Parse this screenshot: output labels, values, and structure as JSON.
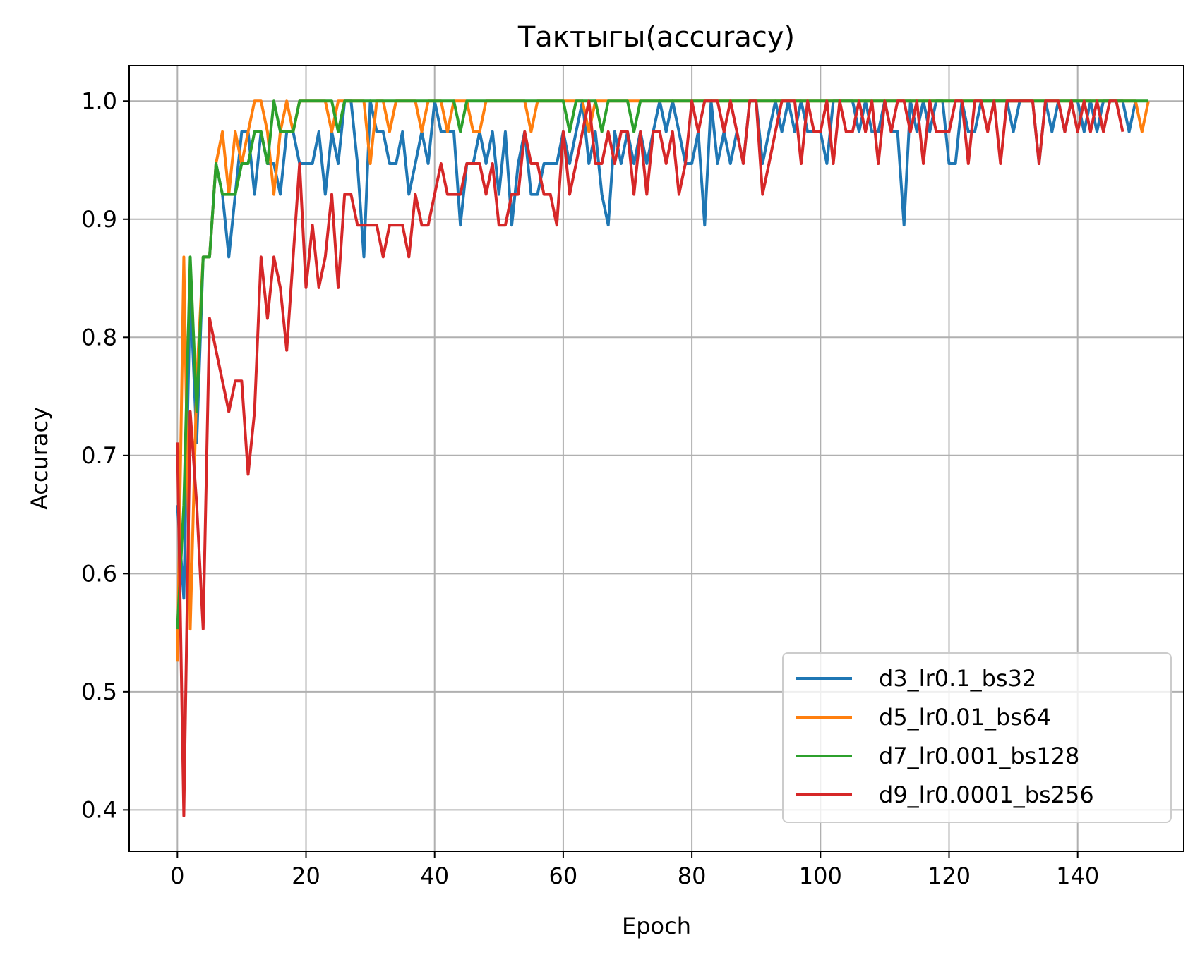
{
  "chart_data": {
    "type": "line",
    "title": "Тактыгы(accuracy)",
    "xlabel": "Epoch",
    "ylabel": "Accuracy",
    "xlim": [
      -7.5,
      156.5
    ],
    "ylim": [
      0.365,
      1.03
    ],
    "xticks": [
      0,
      20,
      40,
      60,
      80,
      100,
      120,
      140
    ],
    "yticks": [
      0.4,
      0.5,
      0.6,
      0.7,
      0.8,
      0.9,
      1.0
    ],
    "ytick_labels": [
      "0.4",
      "0.5",
      "0.6",
      "0.7",
      "0.8",
      "0.9",
      "1.0"
    ],
    "grid": true,
    "legend_position": "lower-right",
    "series": [
      {
        "name": "d3_lr0.1_bs32",
        "color": "#1f77b4",
        "y": [
          0.658,
          0.579,
          0.842,
          0.711,
          0.868,
          0.868,
          0.947,
          0.921,
          0.868,
          0.921,
          0.974,
          0.974,
          0.921,
          0.974,
          0.947,
          0.947,
          0.921,
          0.974,
          0.974,
          0.947,
          0.947,
          0.947,
          0.974,
          0.921,
          0.974,
          0.947,
          1.0,
          1.0,
          0.947,
          0.868,
          1.0,
          0.974,
          0.974,
          0.947,
          0.947,
          0.974,
          0.921,
          0.947,
          0.974,
          0.947,
          1.0,
          0.974,
          0.974,
          0.974,
          0.895,
          0.947,
          0.947,
          0.974,
          0.947,
          0.974,
          0.921,
          0.974,
          0.895,
          0.947,
          0.974,
          0.921,
          0.921,
          0.947,
          0.947,
          0.947,
          0.974,
          0.947,
          0.974,
          1.0,
          0.947,
          0.974,
          0.921,
          0.895,
          0.974,
          0.947,
          0.974,
          0.947,
          0.974,
          0.947,
          0.974,
          1.0,
          0.974,
          1.0,
          0.974,
          0.947,
          0.947,
          0.974,
          0.895,
          1.0,
          0.947,
          0.974,
          0.947,
          0.974,
          0.947,
          1.0,
          1.0,
          0.947,
          0.974,
          1.0,
          0.974,
          1.0,
          0.974,
          1.0,
          0.974,
          0.974,
          0.974,
          0.947,
          1.0,
          1.0,
          1.0,
          1.0,
          0.974,
          1.0,
          0.974,
          0.974,
          1.0,
          0.974,
          0.974,
          0.895,
          1.0,
          0.974,
          1.0,
          0.974,
          1.0,
          1.0,
          0.947,
          0.947,
          1.0,
          0.974,
          0.974,
          1.0,
          1.0,
          1.0,
          1.0,
          1.0,
          0.974,
          1.0,
          1.0,
          1.0,
          0.947,
          1.0,
          0.974,
          1.0,
          0.974,
          1.0,
          1.0,
          0.974,
          1.0,
          0.974,
          1.0,
          1.0,
          1.0,
          1.0,
          0.974,
          1.0
        ]
      },
      {
        "name": "d5_lr0.01_bs64",
        "color": "#ff7f0e",
        "y": [
          0.526,
          0.868,
          0.553,
          0.763,
          0.868,
          0.868,
          0.947,
          0.974,
          0.921,
          0.974,
          0.947,
          0.974,
          1.0,
          1.0,
          0.974,
          0.921,
          0.974,
          1.0,
          0.974,
          1.0,
          1.0,
          1.0,
          1.0,
          1.0,
          0.974,
          1.0,
          1.0,
          1.0,
          1.0,
          1.0,
          0.947,
          1.0,
          1.0,
          0.974,
          1.0,
          1.0,
          1.0,
          1.0,
          0.974,
          1.0,
          1.0,
          1.0,
          0.974,
          1.0,
          1.0,
          1.0,
          0.974,
          0.974,
          1.0,
          1.0,
          1.0,
          1.0,
          1.0,
          1.0,
          1.0,
          0.974,
          1.0,
          1.0,
          1.0,
          1.0,
          1.0,
          1.0,
          1.0,
          1.0,
          0.974,
          1.0,
          1.0,
          1.0,
          1.0,
          1.0,
          1.0,
          1.0,
          1.0,
          1.0,
          1.0,
          1.0,
          1.0,
          1.0,
          1.0,
          1.0,
          1.0,
          1.0,
          1.0,
          1.0,
          1.0,
          1.0,
          1.0,
          1.0,
          1.0,
          1.0,
          1.0,
          1.0,
          1.0,
          1.0,
          1.0,
          1.0,
          1.0,
          1.0,
          1.0,
          1.0,
          1.0,
          1.0,
          1.0,
          1.0,
          1.0,
          1.0,
          1.0,
          1.0,
          1.0,
          1.0,
          1.0,
          1.0,
          1.0,
          1.0,
          1.0,
          1.0,
          1.0,
          1.0,
          1.0,
          1.0,
          1.0,
          1.0,
          1.0,
          1.0,
          1.0,
          1.0,
          1.0,
          1.0,
          1.0,
          1.0,
          1.0,
          1.0,
          1.0,
          1.0,
          1.0,
          1.0,
          1.0,
          1.0,
          1.0,
          1.0,
          1.0,
          1.0,
          1.0,
          1.0,
          1.0,
          1.0,
          1.0,
          1.0,
          1.0,
          1.0,
          0.974,
          1.0
        ]
      },
      {
        "name": "d7_lr0.001_bs128",
        "color": "#2ca02c",
        "y": [
          0.553,
          0.658,
          0.868,
          0.737,
          0.868,
          0.868,
          0.947,
          0.921,
          0.921,
          0.921,
          0.947,
          0.947,
          0.974,
          0.974,
          0.947,
          1.0,
          0.974,
          0.974,
          0.974,
          1.0,
          1.0,
          1.0,
          1.0,
          1.0,
          1.0,
          0.974,
          1.0,
          1.0,
          1.0,
          1.0,
          1.0,
          1.0,
          1.0,
          1.0,
          1.0,
          1.0,
          1.0,
          1.0,
          1.0,
          1.0,
          1.0,
          1.0,
          1.0,
          1.0,
          0.974,
          1.0,
          1.0,
          1.0,
          1.0,
          1.0,
          1.0,
          1.0,
          1.0,
          1.0,
          1.0,
          1.0,
          1.0,
          1.0,
          1.0,
          1.0,
          1.0,
          0.974,
          1.0,
          1.0,
          1.0,
          1.0,
          0.974,
          1.0,
          1.0,
          1.0,
          1.0,
          0.974,
          1.0,
          1.0,
          1.0,
          1.0,
          1.0,
          1.0,
          1.0,
          1.0,
          1.0,
          1.0,
          1.0,
          1.0,
          1.0,
          1.0,
          1.0,
          1.0,
          1.0,
          1.0,
          1.0,
          1.0,
          1.0,
          1.0,
          1.0,
          1.0,
          1.0,
          1.0,
          1.0,
          1.0,
          1.0,
          1.0,
          1.0,
          1.0,
          1.0,
          1.0,
          1.0,
          1.0,
          1.0,
          1.0,
          1.0,
          1.0,
          1.0,
          1.0,
          1.0,
          1.0,
          1.0,
          1.0,
          1.0,
          1.0,
          1.0,
          1.0,
          1.0,
          1.0,
          1.0,
          1.0,
          1.0,
          1.0,
          1.0,
          1.0,
          1.0,
          1.0,
          1.0,
          1.0,
          1.0,
          1.0,
          1.0,
          1.0,
          1.0,
          1.0,
          1.0,
          1.0,
          1.0,
          1.0,
          1.0,
          1.0,
          1.0,
          1.0,
          1.0,
          1.0,
          1.0,
          1.0
        ]
      },
      {
        "name": "d9_lr0.0001_bs256",
        "color": "#d62728",
        "y": [
          0.711,
          0.395,
          0.737,
          0.658,
          0.553,
          0.816,
          0.789,
          0.763,
          0.737,
          0.763,
          0.763,
          0.684,
          0.737,
          0.868,
          0.816,
          0.868,
          0.842,
          0.789,
          0.868,
          0.947,
          0.842,
          0.895,
          0.842,
          0.868,
          0.921,
          0.842,
          0.921,
          0.921,
          0.895,
          0.895,
          0.895,
          0.895,
          0.868,
          0.895,
          0.895,
          0.895,
          0.868,
          0.921,
          0.895,
          0.895,
          0.921,
          0.947,
          0.921,
          0.921,
          0.921,
          0.947,
          0.947,
          0.947,
          0.921,
          0.947,
          0.895,
          0.895,
          0.921,
          0.921,
          0.974,
          0.947,
          0.947,
          0.921,
          0.921,
          0.895,
          0.974,
          0.921,
          0.947,
          0.974,
          1.0,
          0.947,
          0.947,
          0.974,
          0.947,
          0.974,
          0.974,
          0.921,
          0.974,
          0.921,
          0.974,
          0.974,
          0.947,
          0.974,
          0.921,
          0.947,
          1.0,
          0.974,
          1.0,
          1.0,
          1.0,
          0.974,
          1.0,
          0.974,
          0.947,
          1.0,
          1.0,
          0.921,
          0.947,
          0.974,
          1.0,
          1.0,
          1.0,
          0.947,
          1.0,
          0.974,
          0.974,
          1.0,
          0.947,
          1.0,
          0.974,
          0.974,
          1.0,
          0.974,
          1.0,
          0.947,
          1.0,
          0.974,
          1.0,
          1.0,
          0.974,
          1.0,
          0.947,
          1.0,
          0.974,
          0.974,
          0.974,
          1.0,
          1.0,
          0.947,
          1.0,
          1.0,
          0.974,
          1.0,
          0.947,
          1.0,
          1.0,
          1.0,
          1.0,
          1.0,
          0.947,
          1.0,
          1.0,
          1.0,
          0.974,
          1.0,
          0.974,
          1.0,
          0.974,
          1.0,
          0.974,
          1.0,
          1.0,
          0.974
        ]
      }
    ]
  }
}
